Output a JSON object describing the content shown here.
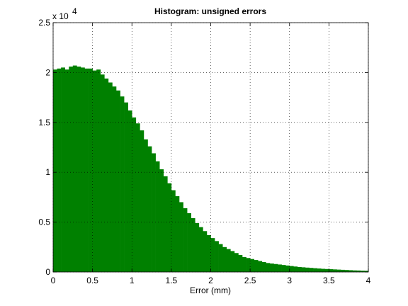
{
  "chart_data": {
    "type": "histogram",
    "title": "Histogram: unsigned errors",
    "x_label": "Error (mm)",
    "y_multiplier": {
      "base": "x 10",
      "exponent": "4"
    },
    "color": "#008000",
    "grid": true,
    "bins": [
      0,
      0.05,
      0.1,
      0.15,
      0.2,
      0.25,
      0.3,
      0.35,
      0.4,
      0.45,
      0.5,
      0.55,
      0.6,
      0.65,
      0.7,
      0.75,
      0.8,
      0.85,
      0.9,
      0.95,
      1,
      1.05,
      1.1,
      1.15,
      1.2,
      1.25,
      1.3,
      1.35,
      1.4,
      1.45,
      1.5,
      1.55,
      1.6,
      1.65,
      1.7,
      1.75,
      1.8,
      1.85,
      1.9,
      1.95,
      2,
      2.05,
      2.1,
      2.15,
      2.2,
      2.25,
      2.3,
      2.35,
      2.4,
      2.45,
      2.5,
      2.55,
      2.6,
      2.65,
      2.7,
      2.75,
      2.8,
      2.85,
      2.9,
      2.95,
      3,
      3.05,
      3.1,
      3.15,
      3.2,
      3.25,
      3.3,
      3.35,
      3.4,
      3.45,
      3.5,
      3.55,
      3.6,
      3.65,
      3.7,
      3.75,
      3.8,
      3.85,
      3.9,
      3.95,
      4
    ],
    "counts": [
      20300,
      20400,
      20500,
      20300,
      20600,
      20700,
      20600,
      20500,
      20400,
      20400,
      20200,
      20300,
      19800,
      19400,
      19000,
      18600,
      18200,
      17600,
      17000,
      16200,
      15500,
      14900,
      14200,
      13300,
      12600,
      11900,
      11100,
      10300,
      9600,
      8900,
      8200,
      7600,
      7000,
      6400,
      5900,
      5400,
      4900,
      4500,
      4100,
      3700,
      3400,
      3100,
      2800,
      2500,
      2300,
      2100,
      1900,
      1700,
      1500,
      1400,
      1300,
      1200,
      1100,
      1000,
      900,
      850,
      800,
      750,
      700,
      650,
      600,
      550,
      500,
      470,
      440,
      410,
      380,
      350,
      320,
      300,
      280,
      260,
      240,
      220,
      200,
      180,
      160,
      150,
      130,
      120
    ],
    "xlim": [
      0,
      4
    ],
    "xticks": [
      0,
      0.5,
      1,
      1.5,
      2,
      2.5,
      3,
      3.5,
      4
    ],
    "ylim": [
      0,
      25000
    ],
    "yticks": [
      {
        "value": 0,
        "label": "0"
      },
      {
        "value": 5000,
        "label": "0.5"
      },
      {
        "value": 10000,
        "label": "1"
      },
      {
        "value": 15000,
        "label": "1.5"
      },
      {
        "value": 20000,
        "label": "2"
      },
      {
        "value": 25000,
        "label": "2.5"
      }
    ]
  }
}
